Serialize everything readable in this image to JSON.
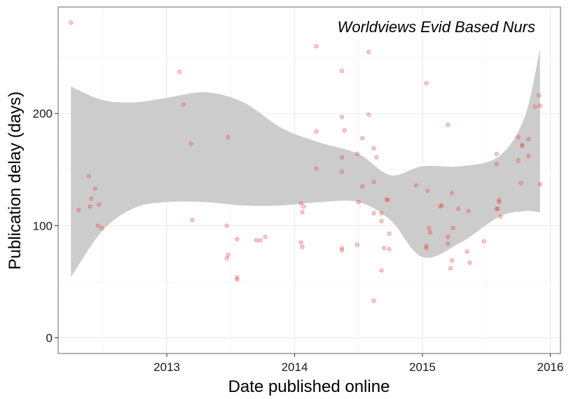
{
  "chart_data": {
    "type": "scatter",
    "title": "Worldviews Evid Based Nurs",
    "xlabel": "Date published online",
    "ylabel": "Publication delay (days)",
    "xlim": [
      2012.15,
      2016.08
    ],
    "ylim": [
      -14,
      295
    ],
    "x_ticks": [
      2013,
      2014,
      2015,
      2016
    ],
    "x_tick_labels": [
      "2013",
      "2014",
      "2015",
      "2016"
    ],
    "y_ticks": [
      0,
      100,
      200
    ],
    "y_tick_labels": [
      "0",
      "100",
      "200"
    ],
    "grid": true,
    "point_color": "#e8413a",
    "smooth_color": "#cccccc",
    "points": [
      {
        "x": 2012.25,
        "y": 281
      },
      {
        "x": 2012.31,
        "y": 114
      },
      {
        "x": 2012.39,
        "y": 144
      },
      {
        "x": 2012.4,
        "y": 117
      },
      {
        "x": 2012.41,
        "y": 124
      },
      {
        "x": 2012.44,
        "y": 133
      },
      {
        "x": 2012.46,
        "y": 100
      },
      {
        "x": 2012.47,
        "y": 119
      },
      {
        "x": 2012.49,
        "y": 98
      },
      {
        "x": 2013.1,
        "y": 237
      },
      {
        "x": 2013.13,
        "y": 208
      },
      {
        "x": 2013.19,
        "y": 173
      },
      {
        "x": 2013.2,
        "y": 105
      },
      {
        "x": 2013.48,
        "y": 179
      },
      {
        "x": 2013.47,
        "y": 100
      },
      {
        "x": 2013.48,
        "y": 74
      },
      {
        "x": 2013.47,
        "y": 71
      },
      {
        "x": 2013.55,
        "y": 88
      },
      {
        "x": 2013.55,
        "y": 54
      },
      {
        "x": 2013.55,
        "y": 52
      },
      {
        "x": 2013.7,
        "y": 87
      },
      {
        "x": 2013.73,
        "y": 87
      },
      {
        "x": 2013.77,
        "y": 90
      },
      {
        "x": 2014.05,
        "y": 120
      },
      {
        "x": 2014.06,
        "y": 112
      },
      {
        "x": 2014.07,
        "y": 117
      },
      {
        "x": 2014.05,
        "y": 85
      },
      {
        "x": 2014.06,
        "y": 81
      },
      {
        "x": 2014.17,
        "y": 260
      },
      {
        "x": 2014.17,
        "y": 184
      },
      {
        "x": 2014.17,
        "y": 151
      },
      {
        "x": 2014.37,
        "y": 238
      },
      {
        "x": 2014.37,
        "y": 197
      },
      {
        "x": 2014.39,
        "y": 185
      },
      {
        "x": 2014.37,
        "y": 161
      },
      {
        "x": 2014.37,
        "y": 148
      },
      {
        "x": 2014.37,
        "y": 80
      },
      {
        "x": 2014.37,
        "y": 78
      },
      {
        "x": 2014.49,
        "y": 164
      },
      {
        "x": 2014.5,
        "y": 121
      },
      {
        "x": 2014.49,
        "y": 83
      },
      {
        "x": 2014.53,
        "y": 178
      },
      {
        "x": 2014.53,
        "y": 135
      },
      {
        "x": 2014.58,
        "y": 255
      },
      {
        "x": 2014.58,
        "y": 199
      },
      {
        "x": 2014.62,
        "y": 169
      },
      {
        "x": 2014.64,
        "y": 161
      },
      {
        "x": 2014.62,
        "y": 139
      },
      {
        "x": 2014.62,
        "y": 111
      },
      {
        "x": 2014.68,
        "y": 111
      },
      {
        "x": 2014.68,
        "y": 104
      },
      {
        "x": 2014.7,
        "y": 80
      },
      {
        "x": 2014.74,
        "y": 79
      },
      {
        "x": 2014.72,
        "y": 123
      },
      {
        "x": 2014.73,
        "y": 123
      },
      {
        "x": 2014.74,
        "y": 93
      },
      {
        "x": 2014.68,
        "y": 60
      },
      {
        "x": 2014.62,
        "y": 33
      },
      {
        "x": 2014.95,
        "y": 136
      },
      {
        "x": 2015.03,
        "y": 227
      },
      {
        "x": 2015.04,
        "y": 131
      },
      {
        "x": 2015.05,
        "y": 98
      },
      {
        "x": 2015.06,
        "y": 94
      },
      {
        "x": 2015.03,
        "y": 82
      },
      {
        "x": 2015.03,
        "y": 80
      },
      {
        "x": 2015.14,
        "y": 117
      },
      {
        "x": 2015.15,
        "y": 118
      },
      {
        "x": 2015.2,
        "y": 190
      },
      {
        "x": 2015.2,
        "y": 90
      },
      {
        "x": 2015.2,
        "y": 84
      },
      {
        "x": 2015.23,
        "y": 129
      },
      {
        "x": 2015.24,
        "y": 98
      },
      {
        "x": 2015.22,
        "y": 62
      },
      {
        "x": 2015.23,
        "y": 69
      },
      {
        "x": 2015.28,
        "y": 115
      },
      {
        "x": 2015.36,
        "y": 113
      },
      {
        "x": 2015.35,
        "y": 77
      },
      {
        "x": 2015.37,
        "y": 67
      },
      {
        "x": 2015.48,
        "y": 86
      },
      {
        "x": 2015.58,
        "y": 164
      },
      {
        "x": 2015.58,
        "y": 155
      },
      {
        "x": 2015.6,
        "y": 123
      },
      {
        "x": 2015.6,
        "y": 121
      },
      {
        "x": 2015.58,
        "y": 115
      },
      {
        "x": 2015.59,
        "y": 115
      },
      {
        "x": 2015.61,
        "y": 108
      },
      {
        "x": 2015.75,
        "y": 179
      },
      {
        "x": 2015.75,
        "y": 158
      },
      {
        "x": 2015.78,
        "y": 171
      },
      {
        "x": 2015.78,
        "y": 172
      },
      {
        "x": 2015.77,
        "y": 138
      },
      {
        "x": 2015.83,
        "y": 177
      },
      {
        "x": 2015.83,
        "y": 162
      },
      {
        "x": 2015.88,
        "y": 206
      },
      {
        "x": 2015.91,
        "y": 216
      },
      {
        "x": 2015.92,
        "y": 207
      },
      {
        "x": 2015.92,
        "y": 137
      }
    ],
    "smooth_band": [
      {
        "x": 2012.25,
        "fit": 139,
        "lower": 54,
        "upper": 224
      },
      {
        "x": 2012.5,
        "fit": 154,
        "lower": 96,
        "upper": 212
      },
      {
        "x": 2012.75,
        "fit": 163,
        "lower": 116,
        "upper": 210
      },
      {
        "x": 2013.0,
        "fit": 168,
        "lower": 121,
        "upper": 214
      },
      {
        "x": 2013.3,
        "fit": 170,
        "lower": 121,
        "upper": 219
      },
      {
        "x": 2013.6,
        "fit": 164,
        "lower": 118,
        "upper": 210
      },
      {
        "x": 2013.9,
        "fit": 152,
        "lower": 118,
        "upper": 187
      },
      {
        "x": 2014.2,
        "fit": 143,
        "lower": 121,
        "upper": 174
      },
      {
        "x": 2014.5,
        "fit": 136,
        "lower": 121,
        "upper": 164
      },
      {
        "x": 2014.75,
        "fit": 124,
        "lower": 105,
        "upper": 145
      },
      {
        "x": 2015.0,
        "fit": 113,
        "lower": 72,
        "upper": 153
      },
      {
        "x": 2015.3,
        "fit": 113,
        "lower": 85,
        "upper": 153
      },
      {
        "x": 2015.6,
        "fit": 135,
        "lower": 108,
        "upper": 162
      },
      {
        "x": 2015.8,
        "fit": 160,
        "lower": 113,
        "upper": 197
      },
      {
        "x": 2015.92,
        "fit": 185,
        "lower": 112,
        "upper": 258
      }
    ]
  }
}
